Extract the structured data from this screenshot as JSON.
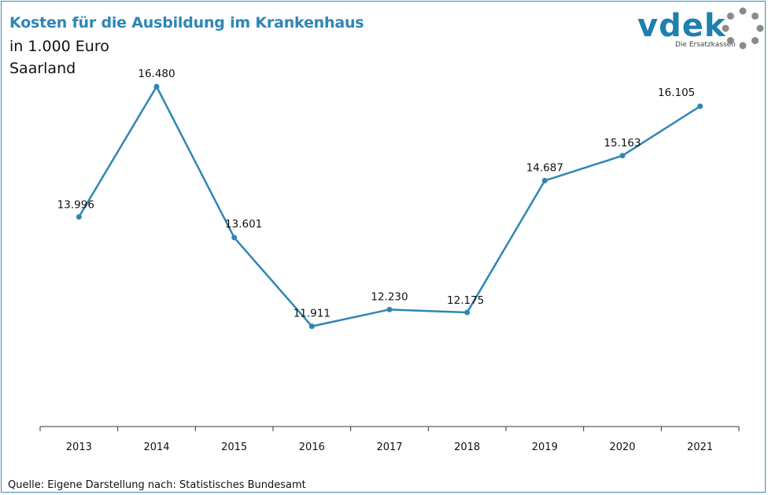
{
  "header": {
    "title": "Kosten für die Ausbildung im Krankenhaus",
    "subtitle_unit": "in 1.000 Euro",
    "subtitle_region": "Saarland"
  },
  "logo": {
    "brand": "vdek",
    "tagline": "Die Ersatzkassen",
    "icon": "dotted-ring-icon",
    "color": "#1f7fae"
  },
  "footer": {
    "source": "Quelle: Eigene Darstellung nach: Statistisches Bundesamt"
  },
  "chart_data": {
    "type": "line",
    "categories": [
      "2013",
      "2014",
      "2015",
      "2016",
      "2017",
      "2018",
      "2019",
      "2020",
      "2021"
    ],
    "values": [
      13996,
      16480,
      13601,
      11911,
      12230,
      12175,
      14687,
      15163,
      16105
    ],
    "data_labels": [
      "13.996",
      "16.480",
      "13.601",
      "11.911",
      "12.230",
      "12.175",
      "14.687",
      "15.163",
      "16.105"
    ],
    "ylim": [
      10000,
      17500
    ],
    "grid": false,
    "legend": "none",
    "line_color": "#2e86b5"
  }
}
